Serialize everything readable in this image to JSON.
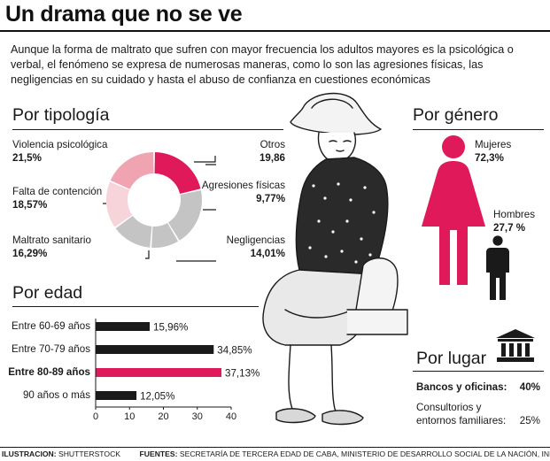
{
  "title": "Un drama que no se ve",
  "intro": "Aunque la forma de maltrato que sufren con mayor frecuencia los adultos mayores es la psicológica o verbal, el fenómeno se expresa de numerosas maneras, como lo son las agresiones físicas, las negligencias en su cuidado y hasta el abuso de confianza en cuestiones económicas",
  "tipologia": {
    "title": "Por tipología",
    "items": [
      {
        "label": "Violencia psicológica",
        "value": "21,5%"
      },
      {
        "label": "Falta de contención",
        "value": "18,57%"
      },
      {
        "label": "Maltrato sanitario",
        "value": "16,29%"
      },
      {
        "label": "Otros",
        "value": "19,86"
      },
      {
        "label": "Agresiones físicas",
        "value": "9,77%"
      },
      {
        "label": "Negligencias",
        "value": "14,01%"
      }
    ]
  },
  "genero": {
    "title": "Por género",
    "mujeres_label": "Mujeres",
    "mujeres_value": "72,3%",
    "hombres_label": "Hombres",
    "hombres_value": "27,7 %"
  },
  "edad": {
    "title": "Por edad",
    "bars": [
      {
        "label": "Entre 60-69 años",
        "value_text": "15,96%"
      },
      {
        "label": "Entre 70-79 años",
        "value_text": "34,85%"
      },
      {
        "label": "Entre 80-89 años",
        "value_text": "37,13%"
      },
      {
        "label": "90 años o más",
        "value_text": "12,05%"
      }
    ],
    "ticks": [
      "0",
      "10",
      "20",
      "30",
      "40"
    ]
  },
  "lugar": {
    "title": "Por lugar",
    "rows": [
      {
        "label": "Bancos y oficinas:",
        "value": "40%"
      },
      {
        "label_line1": "Consultorios y",
        "label_line2": "entornos familiares:",
        "value": "25%"
      }
    ]
  },
  "footer": {
    "credit_label": "ILUSTRACION:",
    "credit_value": "SHUTTERSTOCK",
    "sources_label": "FUENTES:",
    "sources_value": "SECRETARÍA DE TERCERA EDAD DE CABA, MINISTERIO DE DESARROLLO SOCIAL DE LA NACIÓN, INDEC"
  },
  "colors": {
    "accent": "#e0195a",
    "dark": "#1a1a1a",
    "mid": "#c4c4c4",
    "pink_mid": "#f0a3b1",
    "pink_light": "#f7d3da"
  },
  "chart_data": [
    {
      "type": "pie",
      "title": "Por tipología",
      "categories": [
        "Violencia psicológica",
        "Otros",
        "Agresiones físicas",
        "Negligencias",
        "Maltrato sanitario",
        "Falta de contención"
      ],
      "values": [
        21.5,
        19.86,
        9.77,
        14.01,
        16.29,
        18.57
      ]
    },
    {
      "type": "bar",
      "title": "Por edad",
      "categories": [
        "Entre 60-69 años",
        "Entre 70-79 años",
        "Entre 80-89 años",
        "90 años o más"
      ],
      "values": [
        15.96,
        34.85,
        37.13,
        12.05
      ],
      "xlim": [
        0,
        40
      ],
      "highlight": "Entre 80-89 años"
    },
    {
      "type": "pie",
      "title": "Por género",
      "categories": [
        "Mujeres",
        "Hombres"
      ],
      "values": [
        72.3,
        27.7
      ]
    }
  ]
}
